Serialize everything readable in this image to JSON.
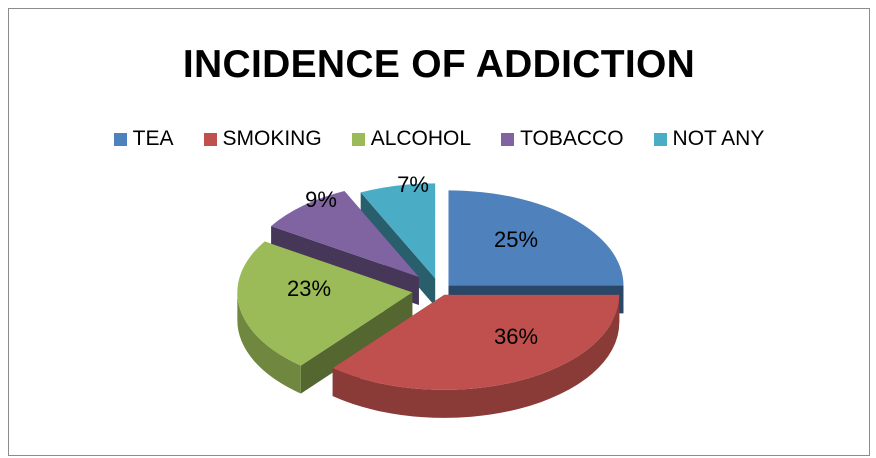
{
  "chart_data": {
    "type": "pie",
    "title": "INCIDENCE OF ADDICTION",
    "legend_position": "top",
    "style": "3d-exploded",
    "categories": [
      "TEA",
      "SMOKING",
      "ALCOHOL",
      "TOBACCO",
      "NOT ANY"
    ],
    "values": [
      25,
      36,
      23,
      9,
      7
    ],
    "labels": [
      "25%",
      "36%",
      "23%",
      "9%",
      "7%"
    ],
    "colors": [
      "#4f81bd",
      "#c0504d",
      "#9bbb59",
      "#8064a2",
      "#4bacc6"
    ]
  }
}
